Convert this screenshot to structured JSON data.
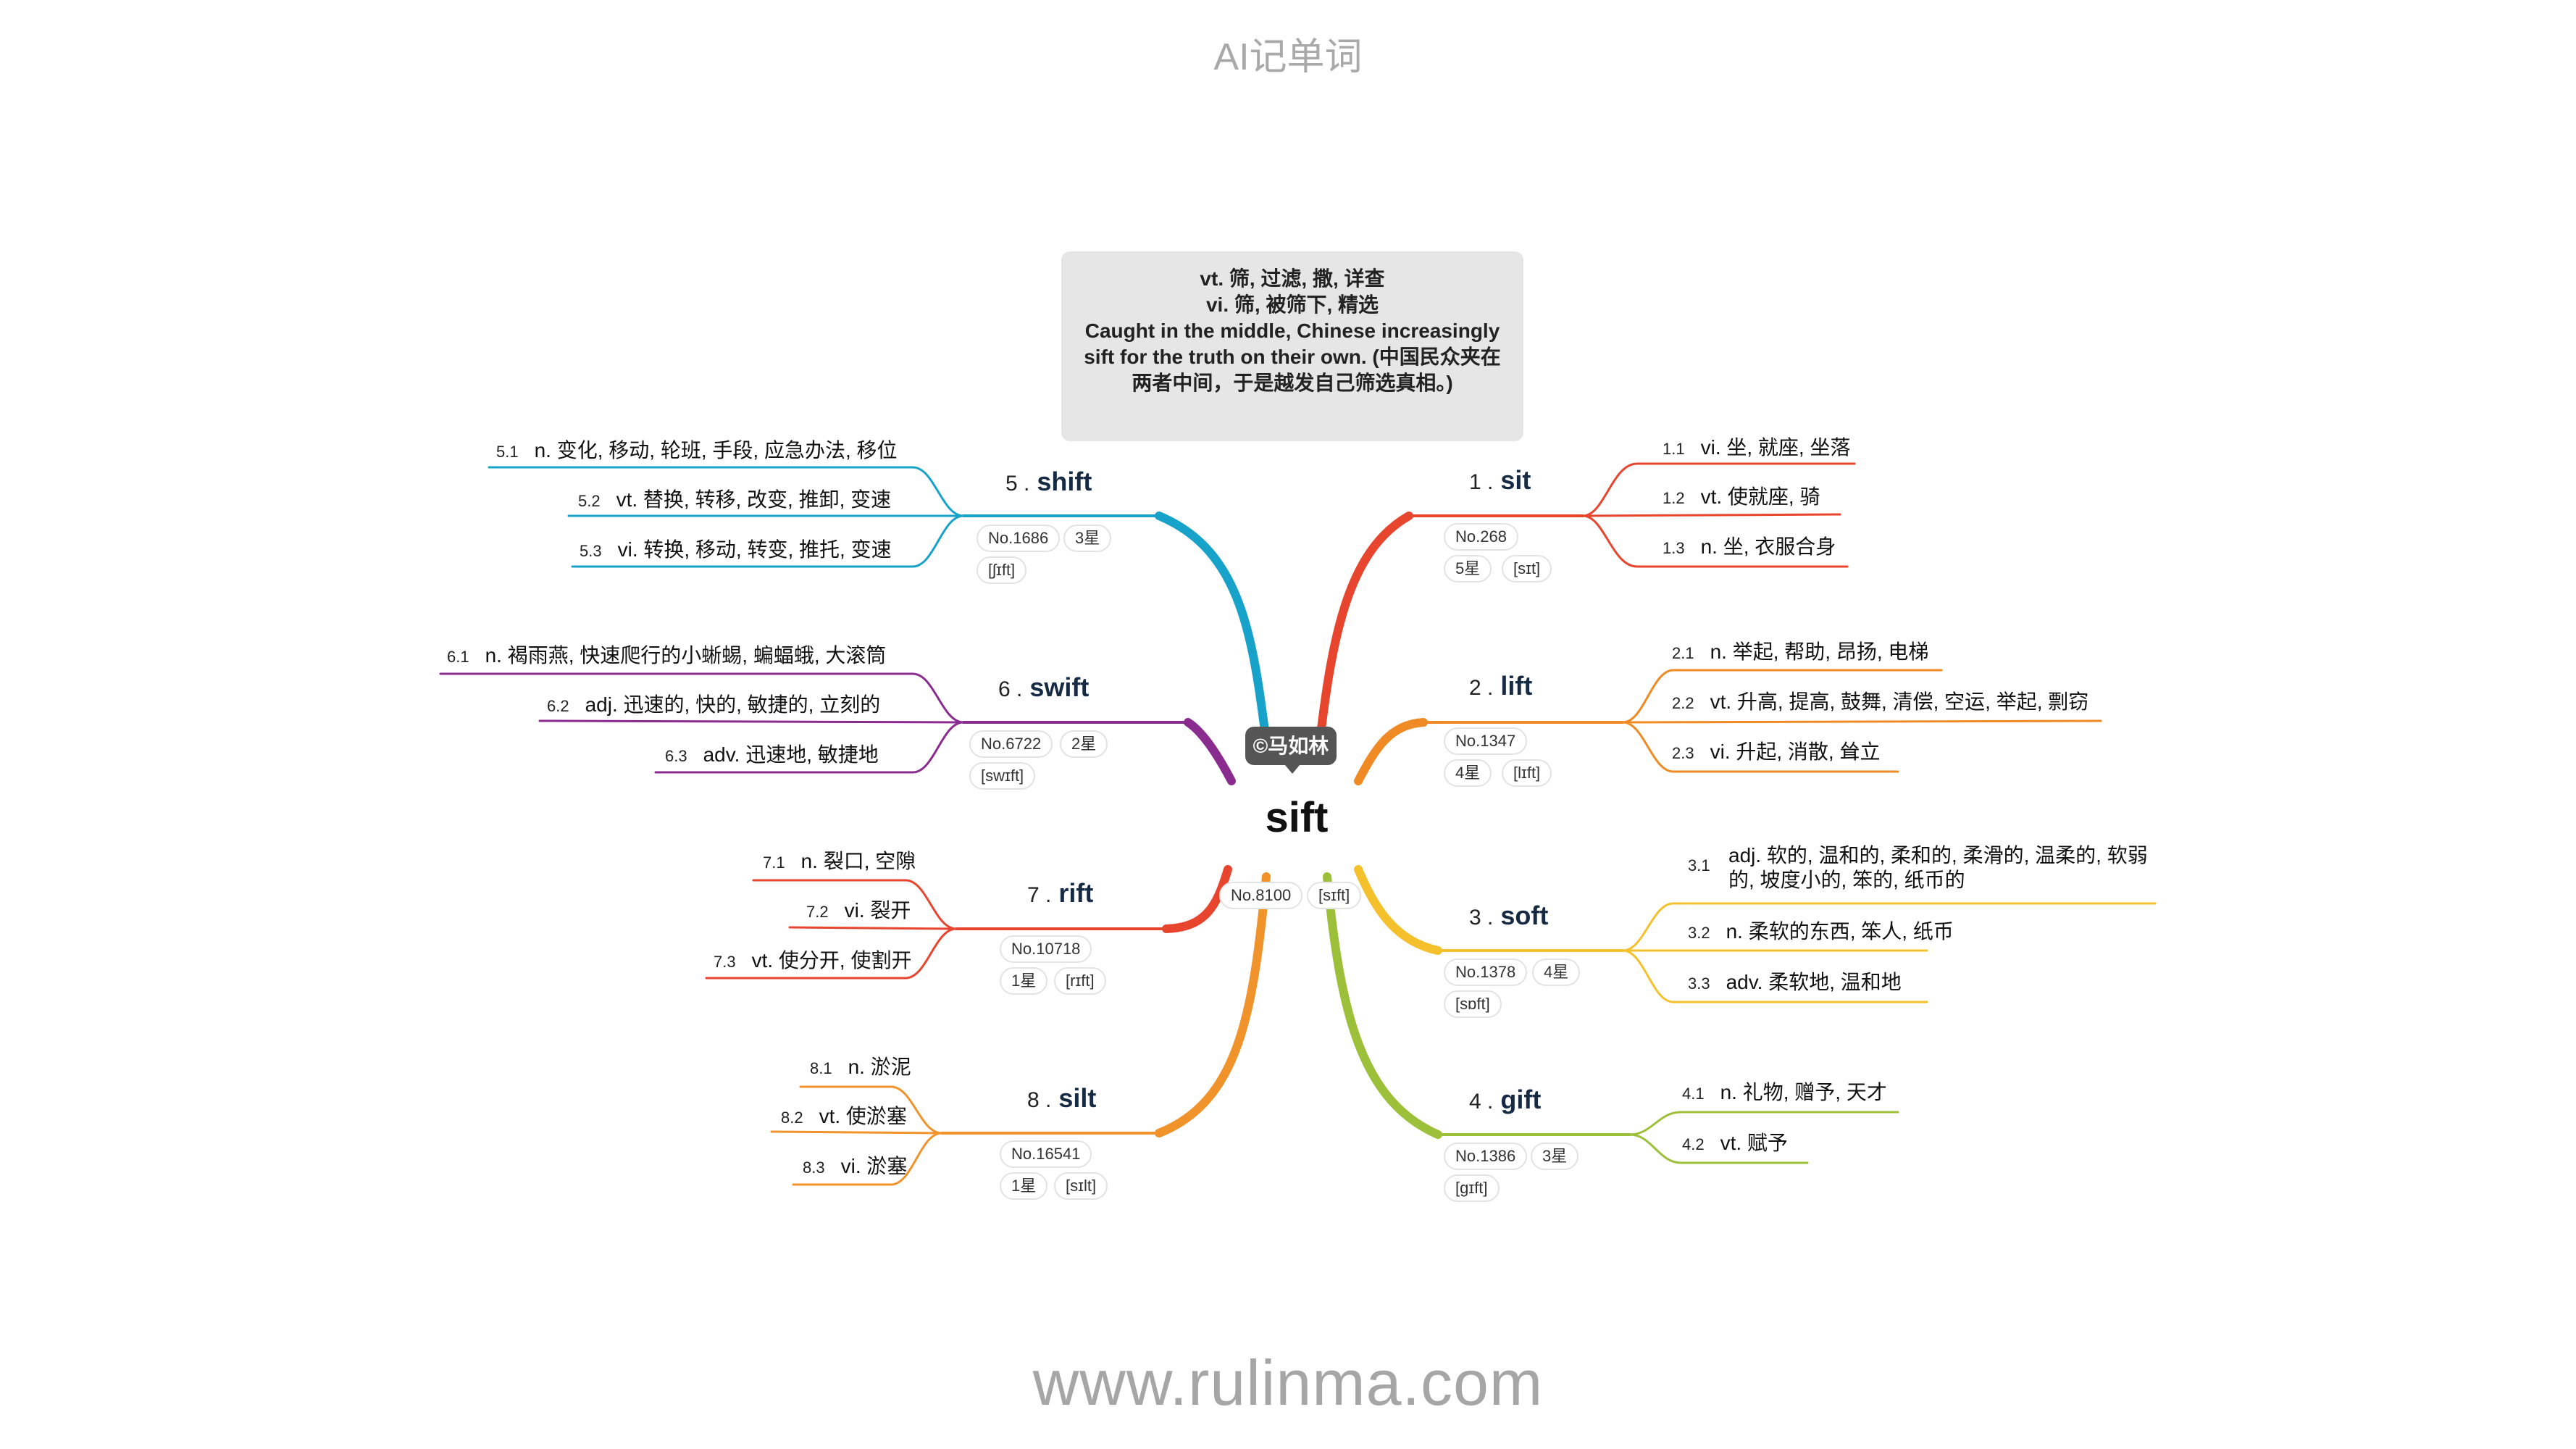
{
  "header": "AI记单词",
  "footer": "www.rulinma.com",
  "watermark": "©马如林",
  "center": {
    "word": "sift",
    "no": "No.8100",
    "phon": "[sɪft]"
  },
  "definition": [
    "vt. 筛, 过滤, 撒, 详查",
    "vi. 筛, 被筛下, 精选",
    "Caught in the middle, Chinese increasingly sift for the truth on their own. (中国民众夹在两者中间，于是越发自己筛选真相。)"
  ],
  "colors": {
    "b1": "#e8452f",
    "b2": "#f08a24",
    "b3": "#f4c12c",
    "b4": "#9cc03a",
    "b5": "#17a3c9",
    "b6": "#8a2b8f",
    "b7": "#e8452f",
    "b8": "#f0932b"
  },
  "branches": [
    {
      "num": "1 .",
      "word": "sit",
      "no": "No.268",
      "star": "5星",
      "phon": "[sɪt]",
      "senses": [
        {
          "n": "1.1",
          "t": "vi. 坐, 就座, 坐落"
        },
        {
          "n": "1.2",
          "t": "vt. 使就座, 骑"
        },
        {
          "n": "1.3",
          "t": "n. 坐, 衣服合身"
        }
      ]
    },
    {
      "num": "2 .",
      "word": "lift",
      "no": "No.1347",
      "star": "4星",
      "phon": "[lɪft]",
      "senses": [
        {
          "n": "2.1",
          "t": "n. 举起, 帮助, 昂扬, 电梯"
        },
        {
          "n": "2.2",
          "t": "vt. 升高, 提高, 鼓舞, 清偿, 空运, 举起, 剽窃"
        },
        {
          "n": "2.3",
          "t": "vi. 升起, 消散, 耸立"
        }
      ]
    },
    {
      "num": "3 .",
      "word": "soft",
      "no": "No.1378",
      "star": "4星",
      "phon": "[sɒft]",
      "senses": [
        {
          "n": "3.1",
          "t": "adj. 软的, 温和的, 柔和的, 柔滑的, 温柔的, 软弱的, 坡度小的, 笨的, 纸币的"
        },
        {
          "n": "3.2",
          "t": "n. 柔软的东西, 笨人, 纸币"
        },
        {
          "n": "3.3",
          "t": "adv. 柔软地, 温和地"
        }
      ]
    },
    {
      "num": "4 .",
      "word": "gift",
      "no": "No.1386",
      "star": "3星",
      "phon": "[gɪft]",
      "senses": [
        {
          "n": "4.1",
          "t": "n. 礼物, 赠予, 天才"
        },
        {
          "n": "4.2",
          "t": "vt. 赋予"
        }
      ]
    },
    {
      "num": "5 .",
      "word": "shift",
      "no": "No.1686",
      "star": "3星",
      "phon": "[ʃɪft]",
      "senses": [
        {
          "n": "5.1",
          "t": "n. 变化, 移动, 轮班, 手段, 应急办法, 移位"
        },
        {
          "n": "5.2",
          "t": "vt. 替换, 转移, 改变, 推卸, 变速"
        },
        {
          "n": "5.3",
          "t": "vi. 转换, 移动, 转变, 推托, 变速"
        }
      ]
    },
    {
      "num": "6 .",
      "word": "swift",
      "no": "No.6722",
      "star": "2星",
      "phon": "[swɪft]",
      "senses": [
        {
          "n": "6.1",
          "t": "n. 褐雨燕, 快速爬行的小蜥蜴, 蝙蝠蛾, 大滚筒"
        },
        {
          "n": "6.2",
          "t": "adj. 迅速的, 快的, 敏捷的, 立刻的"
        },
        {
          "n": "6.3",
          "t": "adv. 迅速地, 敏捷地"
        }
      ]
    },
    {
      "num": "7 .",
      "word": "rift",
      "no": "No.10718",
      "star": "1星",
      "phon": "[rɪft]",
      "senses": [
        {
          "n": "7.1",
          "t": "n. 裂口, 空隙"
        },
        {
          "n": "7.2",
          "t": "vi. 裂开"
        },
        {
          "n": "7.3",
          "t": "vt. 使分开, 使割开"
        }
      ]
    },
    {
      "num": "8 .",
      "word": "silt",
      "no": "No.16541",
      "star": "1星",
      "phon": "[sɪlt]",
      "senses": [
        {
          "n": "8.1",
          "t": "n. 淤泥"
        },
        {
          "n": "8.2",
          "t": "vt. 使淤塞"
        },
        {
          "n": "8.3",
          "t": "vi. 淤塞"
        }
      ]
    }
  ]
}
